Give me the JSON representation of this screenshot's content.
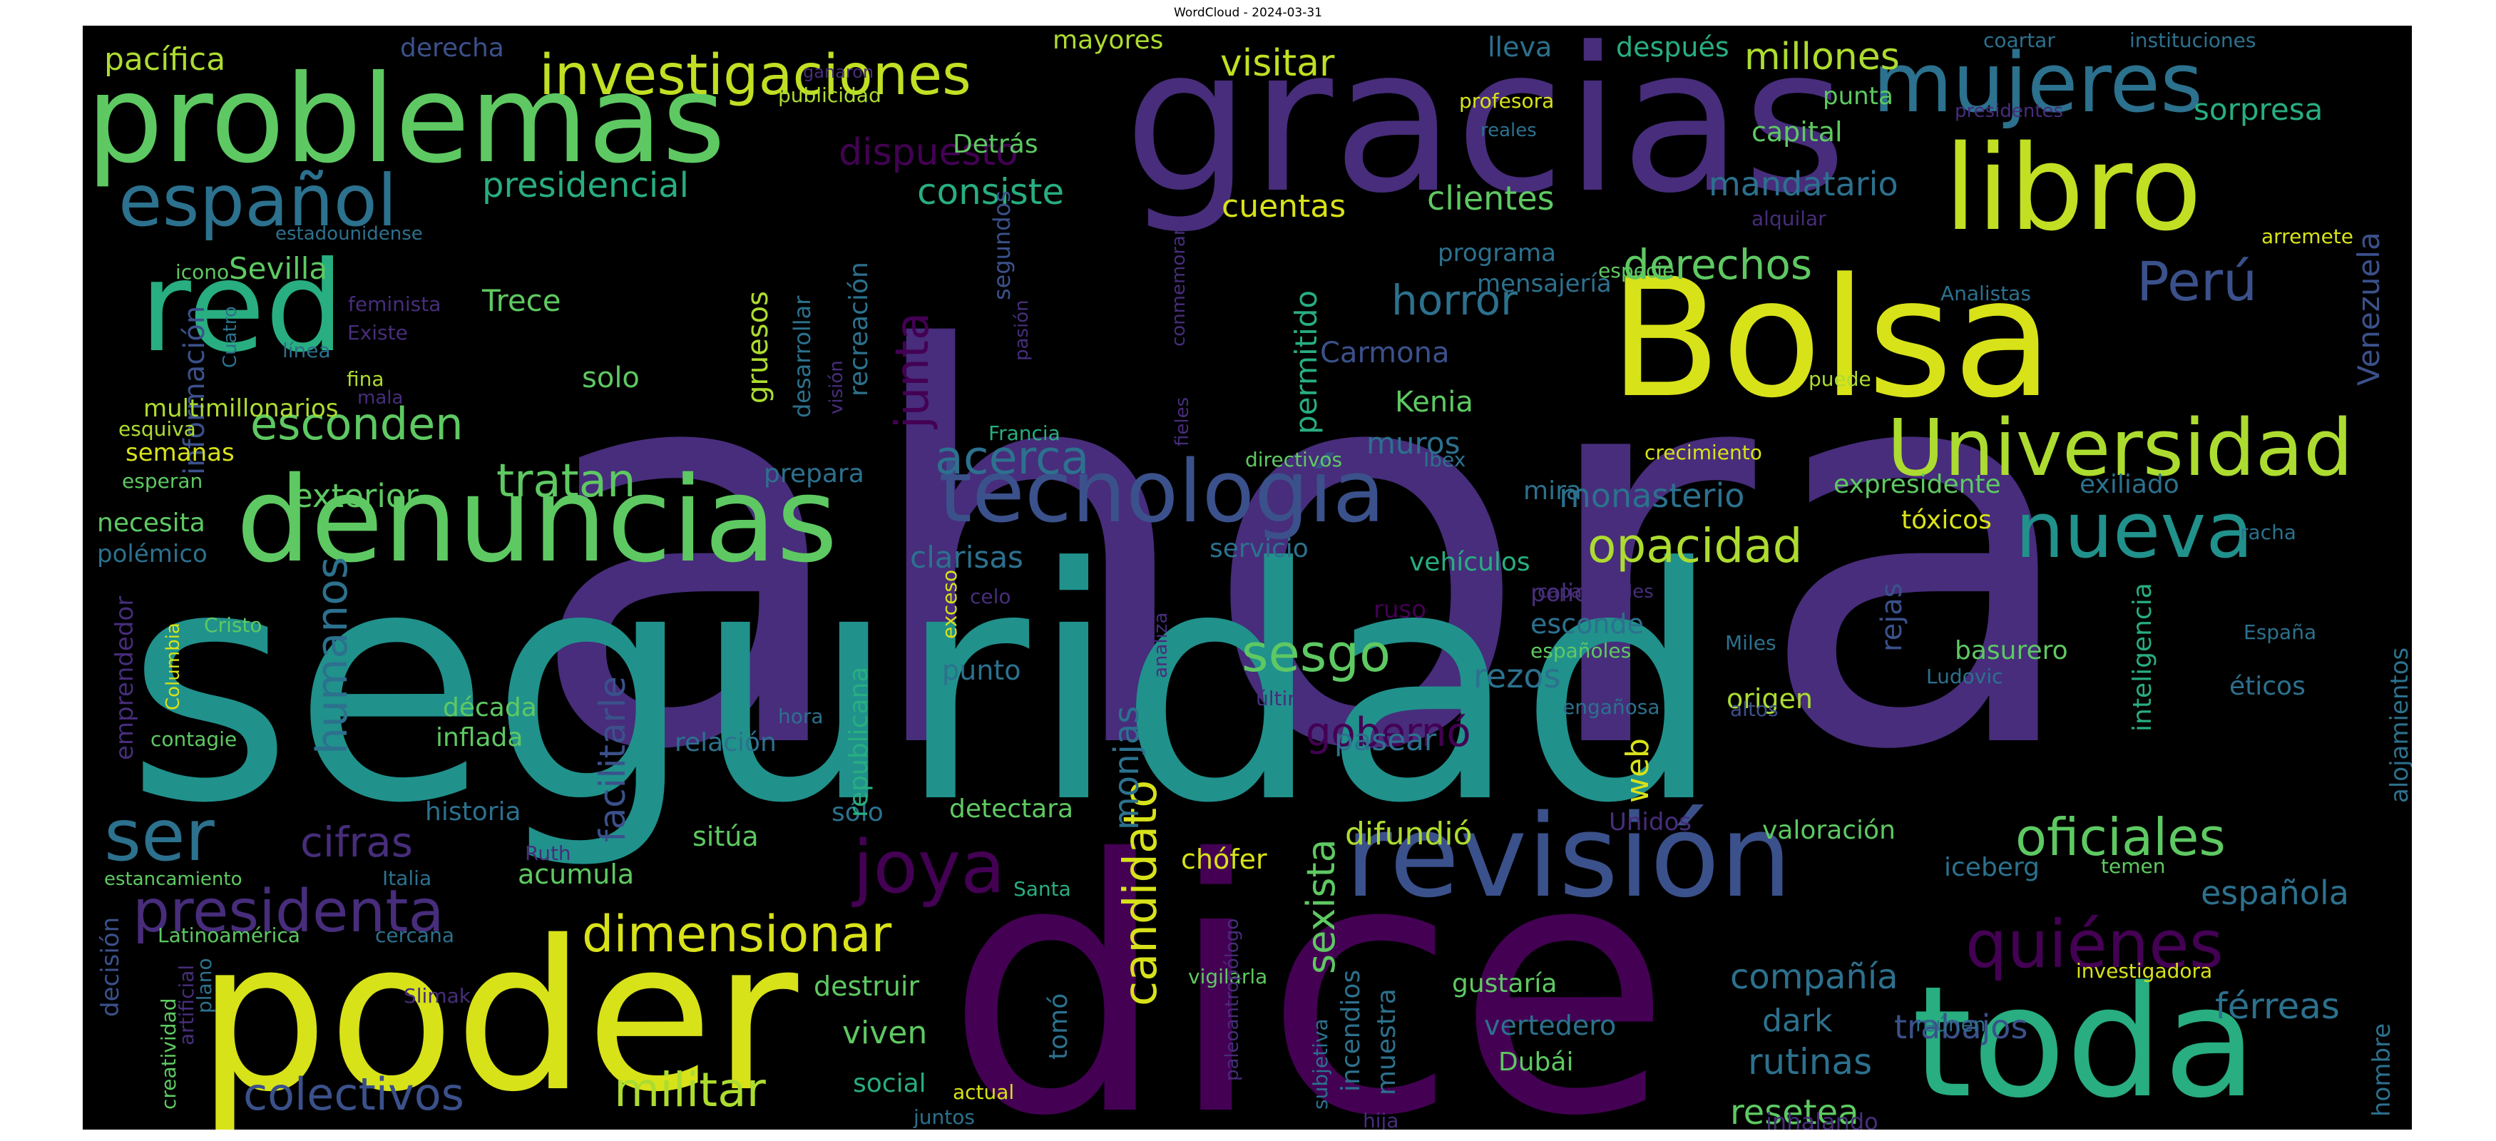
{
  "title": "WordCloud - 2024-03-31",
  "palette": [
    "#440154",
    "#472d7b",
    "#3b518b",
    "#2c718e",
    "#21918c",
    "#28ae80",
    "#5ec962",
    "#addc30",
    "#fde725"
  ],
  "words": [
    {
      "text": "ahora",
      "color": "#472d7b"
    },
    {
      "text": "seguridad",
      "color": "#21918c"
    },
    {
      "text": "dice",
      "color": "#440154"
    },
    {
      "text": "gracias",
      "color": "#472d7b"
    },
    {
      "text": "poder",
      "color": "#d8e219"
    },
    {
      "text": "problemas",
      "color": "#5ec962"
    },
    {
      "text": "Bolsa",
      "color": "#d8e219"
    },
    {
      "text": "toda",
      "color": "#28ae80"
    },
    {
      "text": "denuncias",
      "color": "#5ec962"
    },
    {
      "text": "libro",
      "color": "#c2df23"
    },
    {
      "text": "red",
      "color": "#28ae80"
    },
    {
      "text": "revisión",
      "color": "#3b518b"
    },
    {
      "text": "tecnología",
      "color": "#3b518b"
    },
    {
      "text": "mujeres",
      "color": "#2c718e"
    },
    {
      "text": "Universidad",
      "color": "#addc30"
    },
    {
      "text": "nueva",
      "color": "#21918c"
    },
    {
      "text": "español",
      "color": "#2c718e"
    },
    {
      "text": "quiénes",
      "color": "#440154"
    },
    {
      "text": "presidenta",
      "color": "#472d7b"
    },
    {
      "text": "joya",
      "color": "#440154"
    },
    {
      "text": "investigaciones",
      "color": "#c2df23"
    },
    {
      "text": "colectivos",
      "color": "#3b518b"
    },
    {
      "text": "militar",
      "color": "#addc30"
    },
    {
      "text": "ser",
      "color": "#2c718e"
    },
    {
      "text": "dimensionar",
      "color": "#d8e219"
    },
    {
      "text": "esconden",
      "color": "#5ec962"
    },
    {
      "text": "tratan",
      "color": "#5ec962"
    },
    {
      "text": "cifras",
      "color": "#472d7b"
    },
    {
      "text": "oficiales",
      "color": "#5ec962"
    },
    {
      "text": "opacidad",
      "color": "#addc30"
    },
    {
      "text": "candidato",
      "color": "#d8e219"
    },
    {
      "text": "sexista",
      "color": "#5ec962"
    },
    {
      "text": "acerca",
      "color": "#2c718e"
    },
    {
      "text": "junta",
      "color": "#440154"
    },
    {
      "text": "derechos",
      "color": "#5ec962"
    },
    {
      "text": "horror",
      "color": "#2c718e"
    },
    {
      "text": "humanos",
      "color": "#2c718e"
    },
    {
      "text": "Perú",
      "color": "#3b518b"
    },
    {
      "text": "sesgo",
      "color": "#5ec962"
    },
    {
      "text": "gobernó",
      "color": "#440154"
    },
    {
      "text": "exterior",
      "color": "#5ec962"
    },
    {
      "text": "visitar",
      "color": "#c2df23"
    },
    {
      "text": "millones",
      "color": "#addc30"
    },
    {
      "text": "consiste",
      "color": "#28ae80"
    },
    {
      "text": "presidencial",
      "color": "#28ae80"
    },
    {
      "text": "dispuesto",
      "color": "#440154"
    },
    {
      "text": "cuentas",
      "color": "#d8e219"
    },
    {
      "text": "clientes",
      "color": "#5ec962"
    },
    {
      "text": "mandatario",
      "color": "#2c718e"
    },
    {
      "text": "compañía",
      "color": "#2c718e"
    },
    {
      "text": "trabajos",
      "color": "#3b518b"
    },
    {
      "text": "férreas",
      "color": "#2c718e"
    },
    {
      "text": "rutinas",
      "color": "#2c718e"
    },
    {
      "text": "resetea",
      "color": "#5ec962"
    },
    {
      "text": "española",
      "color": "#2c718e"
    },
    {
      "text": "dark",
      "color": "#2c718e"
    },
    {
      "text": "difundió",
      "color": "#addc30"
    },
    {
      "text": "monasterio",
      "color": "#2c718e"
    },
    {
      "text": "rezos",
      "color": "#2c718e"
    },
    {
      "text": "monjas",
      "color": "#2c718e"
    },
    {
      "text": "facilitarle",
      "color": "#3b518b"
    },
    {
      "text": "viven",
      "color": "#5ec962"
    },
    {
      "text": "Venezuela",
      "color": "#3b518b"
    },
    {
      "text": "Sevilla",
      "color": "#5ec962"
    },
    {
      "text": "Trece",
      "color": "#5ec962"
    },
    {
      "text": "gruesos",
      "color": "#addc30"
    },
    {
      "text": "clarisas",
      "color": "#2c718e"
    },
    {
      "text": "pasear",
      "color": "#2c718e"
    },
    {
      "text": "muros",
      "color": "#2c718e"
    },
    {
      "text": "Kenia",
      "color": "#5ec962"
    },
    {
      "text": "Carmona",
      "color": "#3b518b"
    },
    {
      "text": "permitido",
      "color": "#28ae80"
    },
    {
      "text": "sorpresa",
      "color": "#28ae80"
    },
    {
      "text": "capital",
      "color": "#5ec962"
    },
    {
      "text": "punta",
      "color": "#5ec962"
    },
    {
      "text": "Detrás",
      "color": "#5ec962"
    },
    {
      "text": "pacífica",
      "color": "#addc30"
    },
    {
      "text": "derecha",
      "color": "#3b518b"
    },
    {
      "text": "mayores",
      "color": "#addc30"
    },
    {
      "text": "lleva",
      "color": "#2c718e"
    },
    {
      "text": "después",
      "color": "#28ae80"
    },
    {
      "text": "web",
      "color": "#d8e219"
    },
    {
      "text": "chófer",
      "color": "#d8e219"
    },
    {
      "text": "basurero",
      "color": "#5ec962"
    },
    {
      "text": "rejas",
      "color": "#3b518b"
    },
    {
      "text": "origen",
      "color": "#addc30"
    },
    {
      "text": "década",
      "color": "#5ec962"
    },
    {
      "text": "inflada",
      "color": "#5ec962"
    },
    {
      "text": "historia",
      "color": "#2c718e"
    },
    {
      "text": "acumula",
      "color": "#5ec962"
    },
    {
      "text": "información",
      "color": "#3b518b"
    },
    {
      "text": "multimillonarios",
      "color": "#addc30"
    },
    {
      "text": "semanas",
      "color": "#d8e219"
    },
    {
      "text": "necesita",
      "color": "#5ec962"
    },
    {
      "text": "polémico",
      "color": "#2c718e"
    },
    {
      "text": "solo",
      "color": "#5ec962"
    },
    {
      "text": "prepara",
      "color": "#2c718e"
    },
    {
      "text": "servicio",
      "color": "#2c718e"
    },
    {
      "text": "vehículos",
      "color": "#28ae80"
    },
    {
      "text": "mira",
      "color": "#2c718e"
    },
    {
      "text": "esconde",
      "color": "#2c718e"
    },
    {
      "text": "policía",
      "color": "#472d7b"
    },
    {
      "text": "ruso",
      "color": "#440154"
    },
    {
      "text": "tóxicos",
      "color": "#d8e219"
    },
    {
      "text": "expresidente",
      "color": "#5ec962"
    },
    {
      "text": "exiliado",
      "color": "#2c718e"
    },
    {
      "text": "inteligencia",
      "color": "#28ae80"
    },
    {
      "text": "alojamientos",
      "color": "#2c718e"
    },
    {
      "text": "éticos",
      "color": "#2c718e"
    },
    {
      "text": "valoración",
      "color": "#5ec962"
    },
    {
      "text": "iceberg",
      "color": "#2c718e"
    },
    {
      "text": "Unidos",
      "color": "#472d7b"
    },
    {
      "text": "destruir",
      "color": "#5ec962"
    },
    {
      "text": "social",
      "color": "#28ae80"
    },
    {
      "text": "sitúa",
      "color": "#5ec962"
    },
    {
      "text": "sólo",
      "color": "#2c718e"
    },
    {
      "text": "punto",
      "color": "#2c718e"
    },
    {
      "text": "relación",
      "color": "#2c718e"
    },
    {
      "text": "republicana",
      "color": "#28ae80"
    },
    {
      "text": "detectara",
      "color": "#5ec962"
    },
    {
      "text": "vertedero",
      "color": "#2c718e"
    },
    {
      "text": "gustaría",
      "color": "#5ec962"
    },
    {
      "text": "Dubái",
      "color": "#5ec962"
    },
    {
      "text": "incendios",
      "color": "#2c718e"
    },
    {
      "text": "muestra",
      "color": "#2c718e"
    },
    {
      "text": "tomó",
      "color": "#2c718e"
    },
    {
      "text": "programa",
      "color": "#2c718e"
    },
    {
      "text": "mensajería",
      "color": "#2c718e"
    },
    {
      "text": "especie",
      "color": "#5ec962"
    },
    {
      "text": "crecimiento",
      "color": "#d8e219"
    },
    {
      "text": "directivos",
      "color": "#5ec962"
    },
    {
      "text": "Ibex",
      "color": "#2c718e"
    },
    {
      "text": "Francia",
      "color": "#28ae80"
    },
    {
      "text": "recreación",
      "color": "#2c718e"
    },
    {
      "text": "desarrollar",
      "color": "#2c718e"
    },
    {
      "text": "segundos",
      "color": "#3b518b"
    },
    {
      "text": "conmemorar",
      "color": "#472d7b"
    },
    {
      "text": "pasión",
      "color": "#472d7b"
    },
    {
      "text": "visión",
      "color": "#472d7b"
    },
    {
      "text": "fieles",
      "color": "#472d7b"
    },
    {
      "text": "profesora",
      "color": "#d8e219"
    },
    {
      "text": "reales",
      "color": "#2c718e"
    },
    {
      "text": "publicidad",
      "color": "#addc30"
    },
    {
      "text": "ganaron",
      "color": "#472d7b"
    },
    {
      "text": "coartar",
      "color": "#2c718e"
    },
    {
      "text": "instituciones",
      "color": "#2c718e"
    },
    {
      "text": "presidentes",
      "color": "#472d7b"
    },
    {
      "text": "alquilar",
      "color": "#472d7b"
    },
    {
      "text": "arremete",
      "color": "#d8e219"
    },
    {
      "text": "Analistas",
      "color": "#2c718e"
    },
    {
      "text": "puede",
      "color": "#addc30"
    },
    {
      "text": "racha",
      "color": "#2c718e"
    },
    {
      "text": "España",
      "color": "#2c718e"
    },
    {
      "text": "Miles",
      "color": "#2c718e"
    },
    {
      "text": "Ludovic",
      "color": "#2c718e"
    },
    {
      "text": "altos",
      "color": "#3b518b"
    },
    {
      "text": "engañosa",
      "color": "#2c718e"
    },
    {
      "text": "españoles",
      "color": "#5ec962"
    },
    {
      "text": "capacidades",
      "color": "#472d7b"
    },
    {
      "text": "temen",
      "color": "#5ec962"
    },
    {
      "text": "reúnen",
      "color": "#2c718e"
    },
    {
      "text": "investigadora",
      "color": "#d8e219"
    },
    {
      "text": "hombre",
      "color": "#2c718e"
    },
    {
      "text": "inhalando",
      "color": "#472d7b"
    },
    {
      "text": "actual",
      "color": "#d8e219"
    },
    {
      "text": "juntos",
      "color": "#2c718e"
    },
    {
      "text": "hija",
      "color": "#472d7b"
    },
    {
      "text": "subjetiva",
      "color": "#2c718e"
    },
    {
      "text": "vigilarla",
      "color": "#5ec962"
    },
    {
      "text": "paleoantropólogo",
      "color": "#472d7b"
    },
    {
      "text": "Santa",
      "color": "#28ae80"
    },
    {
      "text": "último",
      "color": "#472d7b"
    },
    {
      "text": "analiza",
      "color": "#472d7b"
    },
    {
      "text": "celo",
      "color": "#472d7b"
    },
    {
      "text": "exceso",
      "color": "#d8e219"
    },
    {
      "text": "hora",
      "color": "#2c718e"
    },
    {
      "text": "estadounidense",
      "color": "#2c718e"
    },
    {
      "text": "icono",
      "color": "#5ec962"
    },
    {
      "text": "feminista",
      "color": "#472d7b"
    },
    {
      "text": "Existe",
      "color": "#472d7b"
    },
    {
      "text": "Cuatro",
      "color": "#2c718e"
    },
    {
      "text": "línea",
      "color": "#2c718e"
    },
    {
      "text": "mala",
      "color": "#472d7b"
    },
    {
      "text": "fina",
      "color": "#addc30"
    },
    {
      "text": "esquiva",
      "color": "#addc30"
    },
    {
      "text": "esperan",
      "color": "#5ec962"
    },
    {
      "text": "emprendedor",
      "color": "#472d7b"
    },
    {
      "text": "Columbia",
      "color": "#d8e219"
    },
    {
      "text": "Cristo",
      "color": "#5ec962"
    },
    {
      "text": "contagie",
      "color": "#5ec962"
    },
    {
      "text": "estancamiento",
      "color": "#5ec962"
    },
    {
      "text": "Italia",
      "color": "#2c718e"
    },
    {
      "text": "Ruth",
      "color": "#472d7b"
    },
    {
      "text": "Latinoamérica",
      "color": "#5ec962"
    },
    {
      "text": "cercana",
      "color": "#2c718e"
    },
    {
      "text": "decisión",
      "color": "#3b518b"
    },
    {
      "text": "creatividad",
      "color": "#5ec962"
    },
    {
      "text": "artificial",
      "color": "#472d7b"
    },
    {
      "text": "plano",
      "color": "#2c718e"
    },
    {
      "text": "Slimak",
      "color": "#472d7b"
    }
  ]
}
